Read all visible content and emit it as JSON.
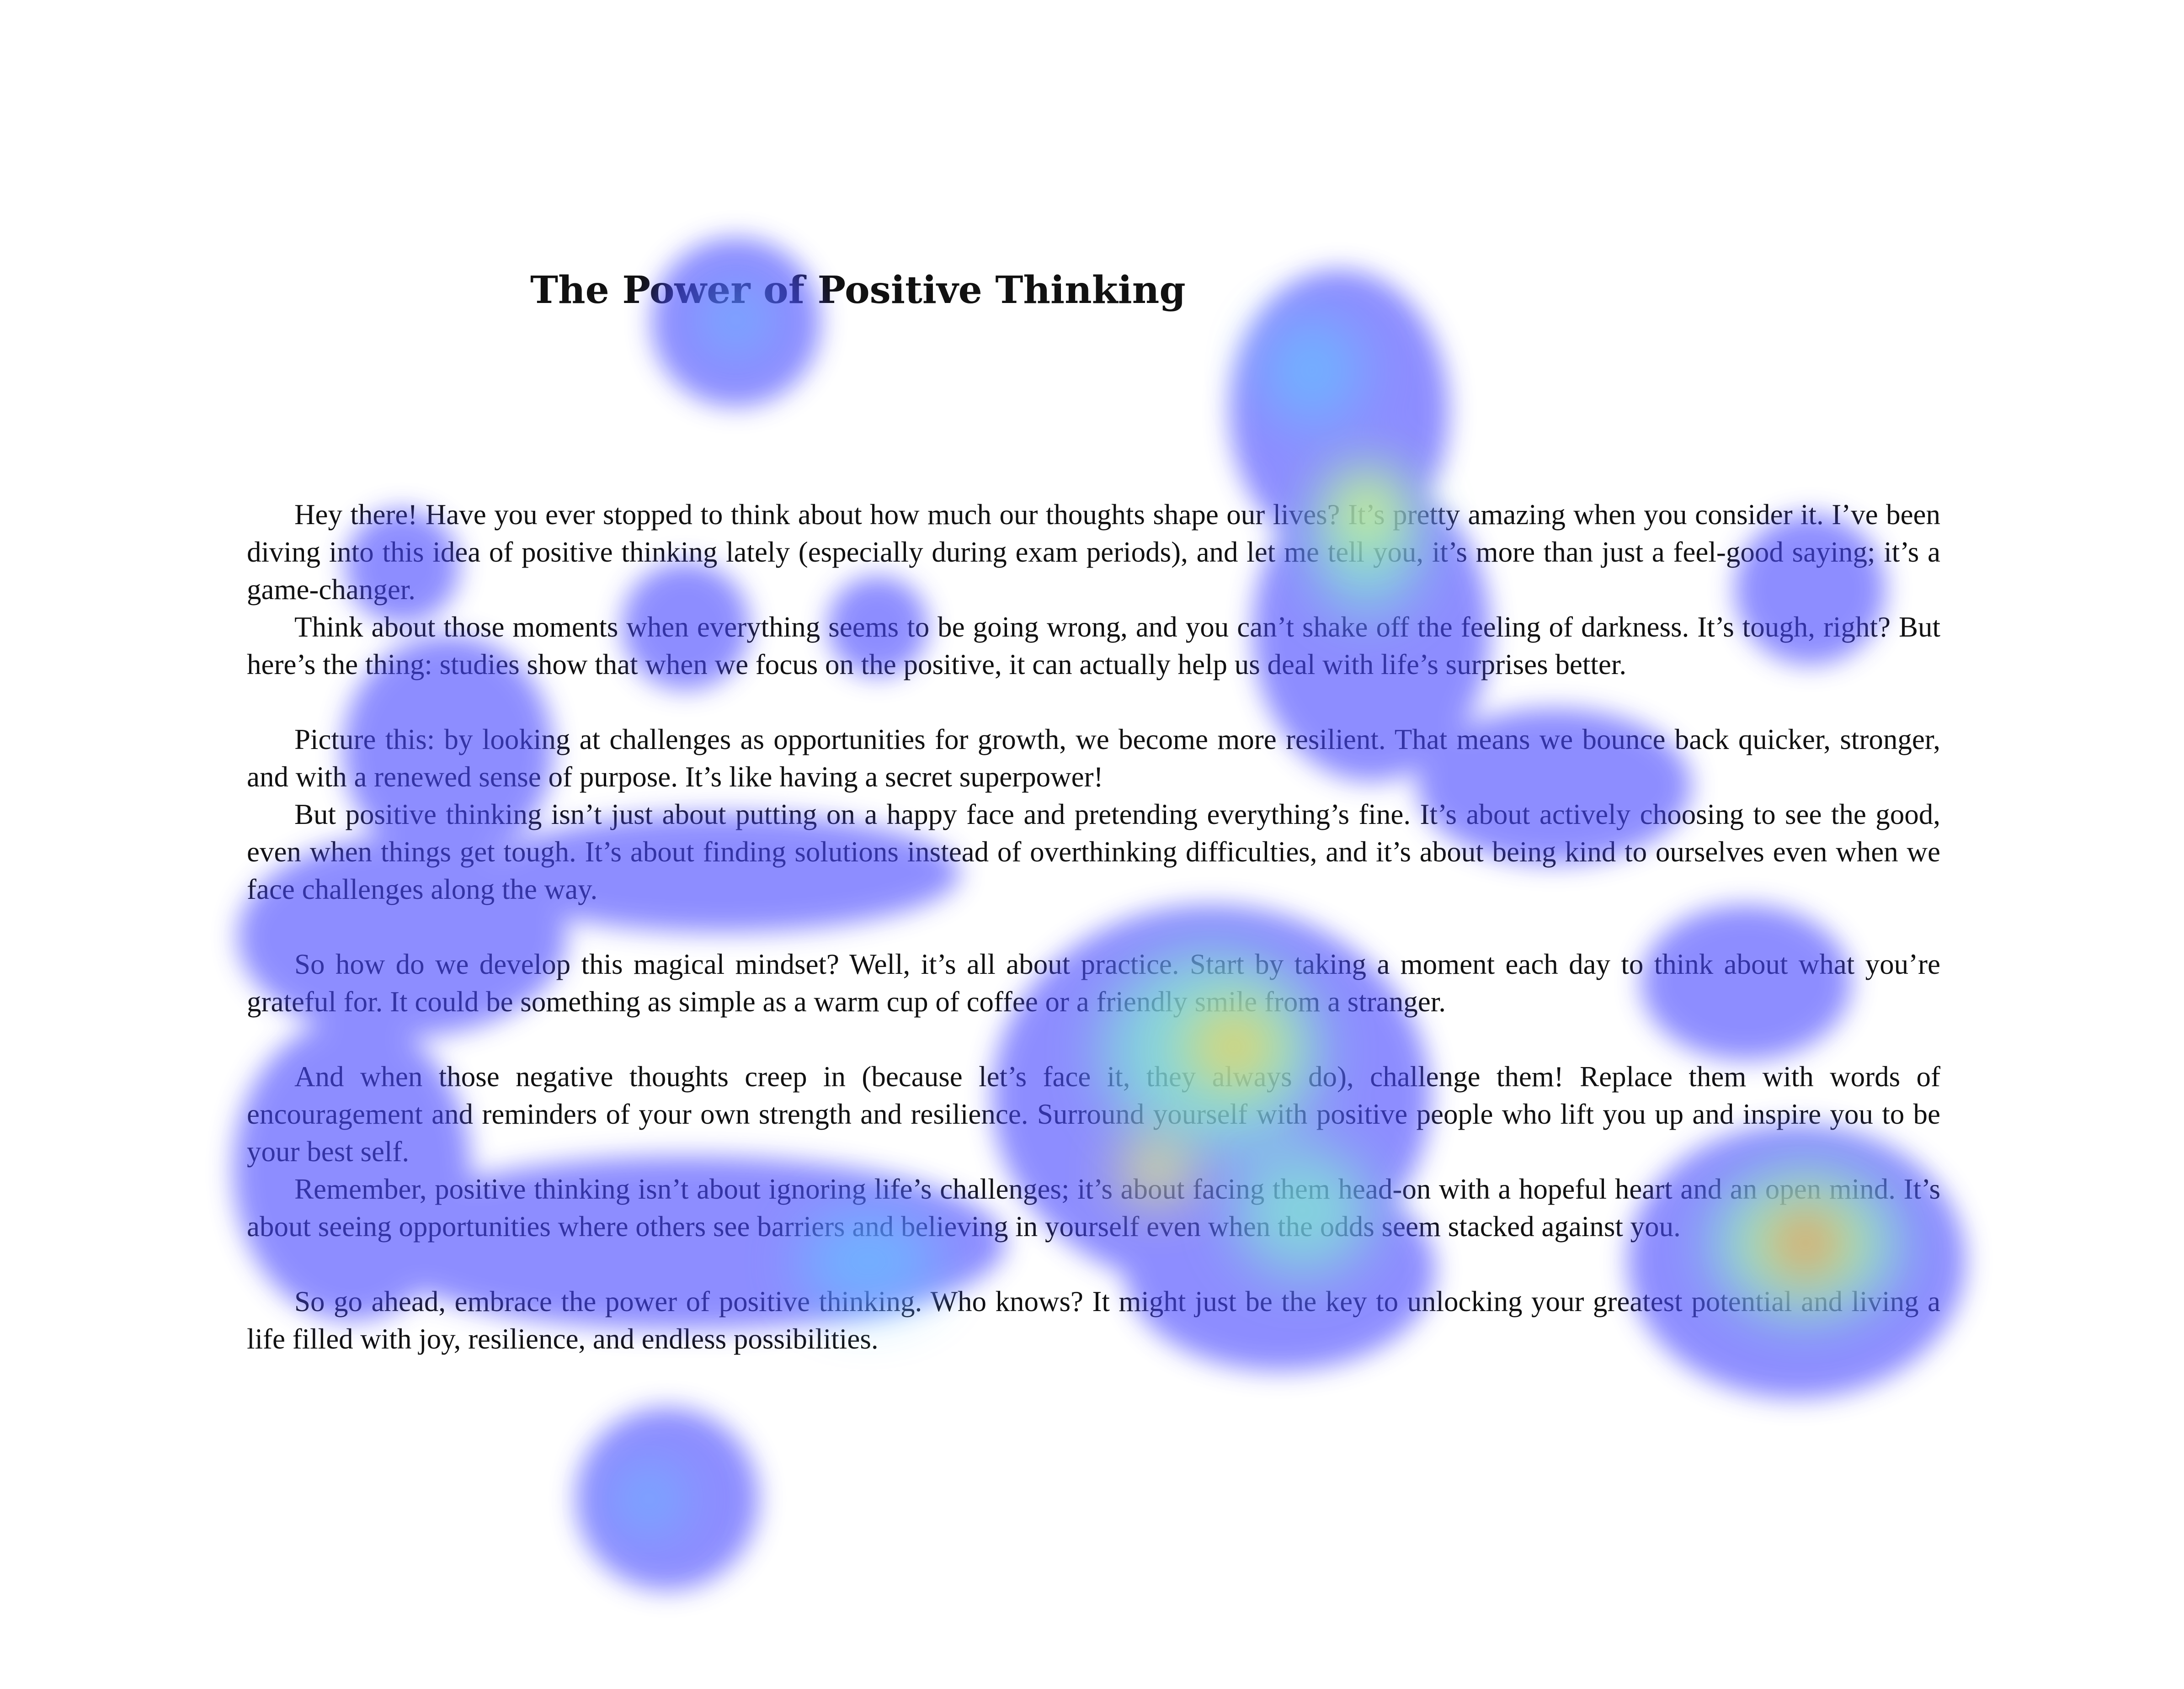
{
  "document": {
    "title": "The Power of Positive Thinking",
    "paragraphs": [
      "Hey there! Have you ever stopped to think about how much our thoughts shape our lives? It’s pretty amazing when you consider it. I’ve been diving into this idea of positive thinking lately (especially during exam periods), and let me tell you, it’s more than just a feel-good saying; it’s a game-changer.",
      "Think about those moments when everything seems to be going wrong, and you can’t shake off the feeling of darkness. It’s tough, right? But here’s the thing: studies show that when we focus on the positive, it can actually help us deal with life’s surprises better.",
      "Picture this: by looking at challenges as opportunities for growth, we become more resilient. That means we bounce back quicker, stronger, and with a renewed sense of purpose. It’s like having a secret superpower!",
      "But positive thinking isn’t just about putting on a happy face and pretending everything’s fine. It’s about actively choosing to see the good, even when things get tough. It’s about finding solutions instead of overthinking difficulties, and it’s about being kind to ourselves even when we face challenges along the way.",
      "So how do we develop this magical mindset? Well, it’s all about practice. Start by taking a moment each day to think about what you’re grateful for. It could be something as simple as a warm cup of coffee or a friendly smile from a stranger.",
      "And when those negative thoughts creep in (because let’s face it, they always do), challenge them! Replace them with words of encouragement and reminders of your own strength and resilience. Surround yourself with positive people who lift you up and inspire you to be your best self.",
      "Remember, positive thinking isn’t about ignoring life’s challenges; it’s about facing them head-on with a hopeful heart and an open mind. It’s about seeing opportunities where others see barriers and believing in yourself even when the odds seem stacked against you.",
      "So go ahead, embrace the power of positive thinking. Who knows? It might just be the key to unlocking your greatest potential and living a life filled with joy, resilience, and endless possibilities."
    ]
  },
  "heatmap": {
    "colormap": [
      "#4a4aff",
      "#5fc8ff",
      "#7fffc8",
      "#f5ff60",
      "#ff9a30",
      "#ff2a2a"
    ],
    "opacity": 0.62
  }
}
